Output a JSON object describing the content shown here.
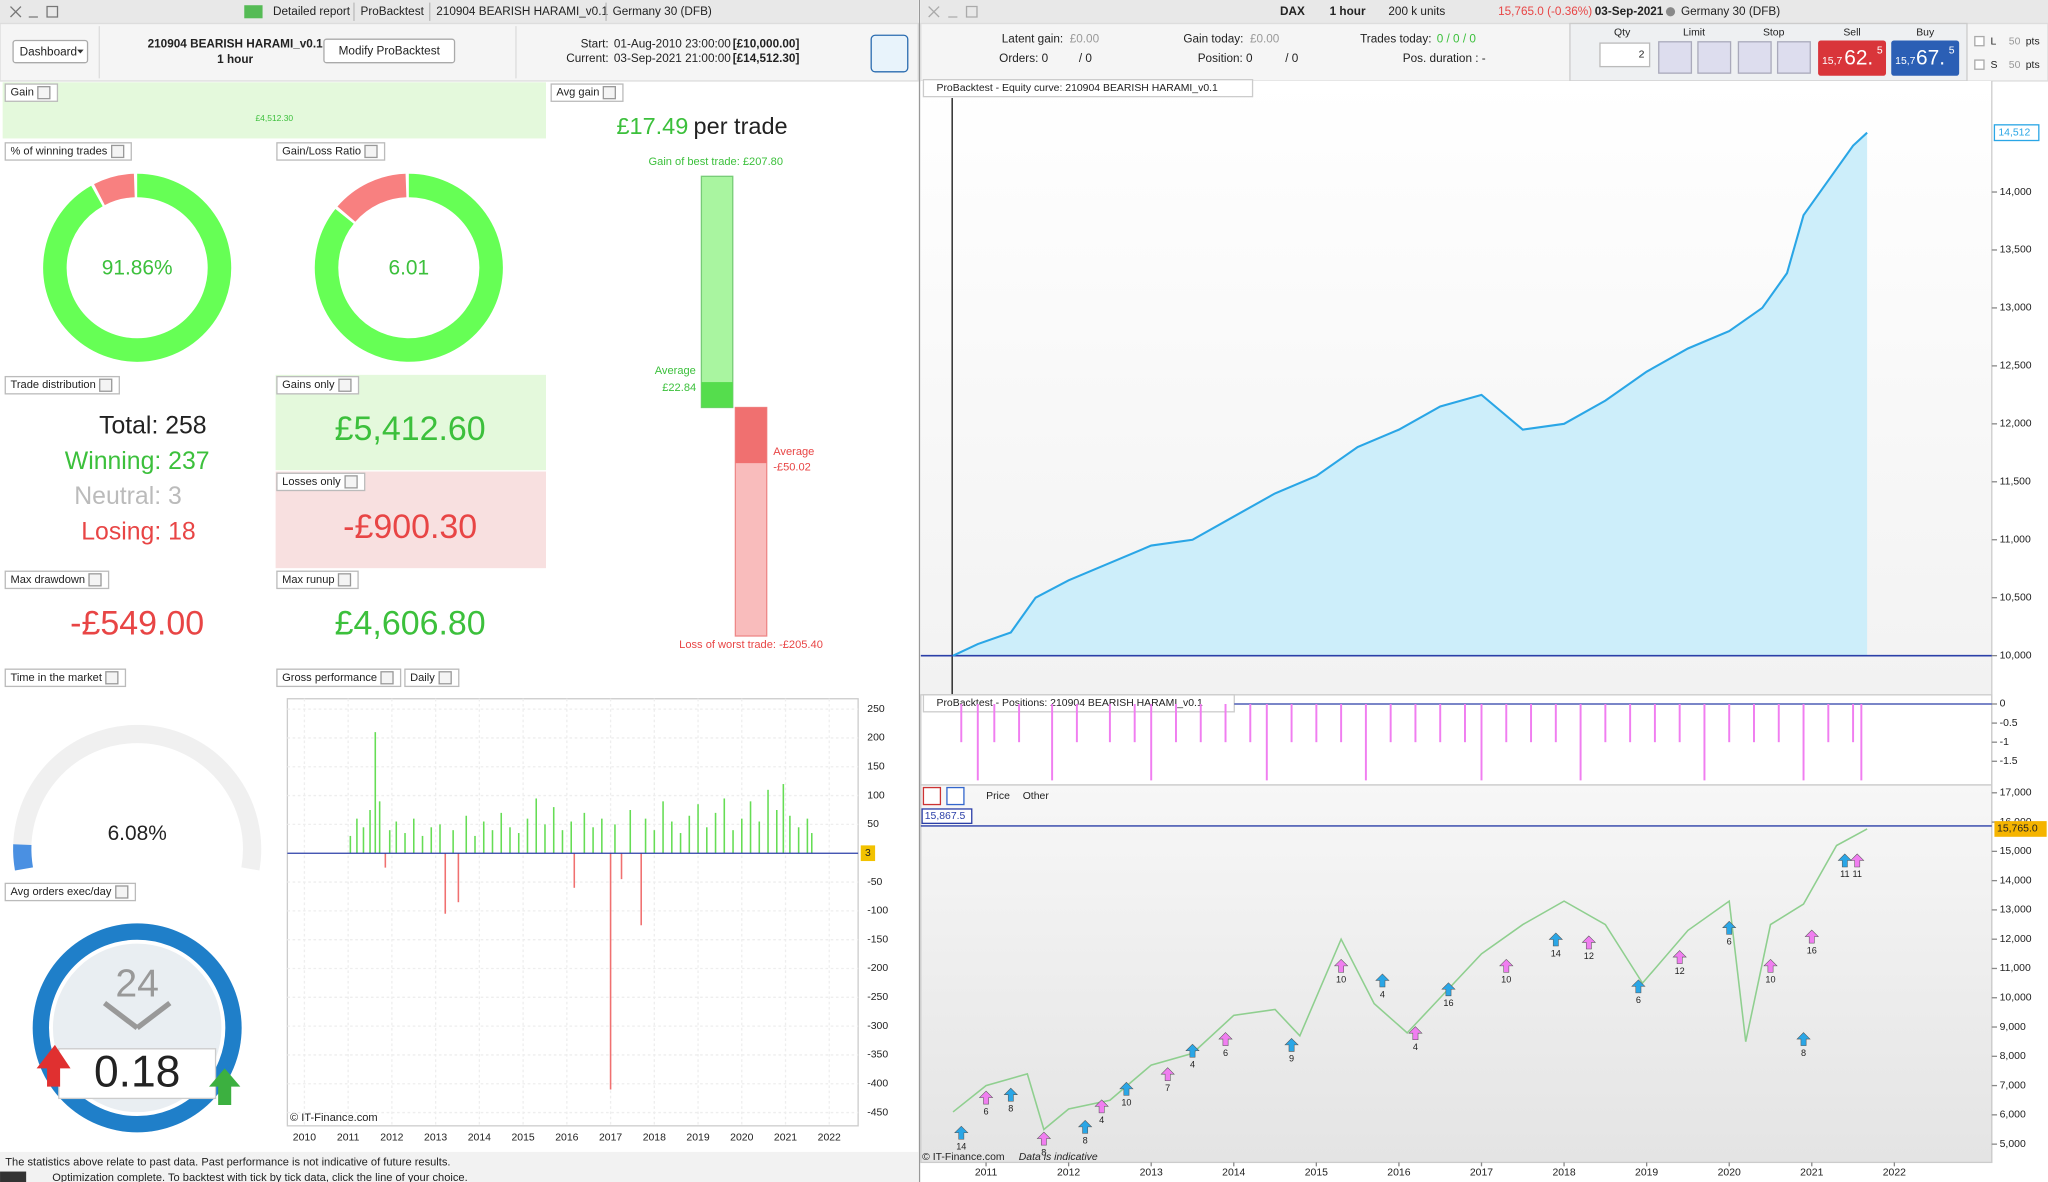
{
  "left": {
    "toolbar": {
      "tabs": [
        "Detailed report",
        "ProBacktest",
        "210904 BEARISH HARAMI_v0.1",
        "Germany 30 (DFB)"
      ]
    },
    "header": {
      "dashboard": "Dashboard",
      "strategy": "210904 BEARISH HARAMI_v0.1",
      "timeframe": "1 hour",
      "modify": "Modify ProBacktest",
      "start_label": "Start:",
      "start": "01-Aug-2010 23:00:00",
      "start_capital": "[£10,000.00]",
      "current_label": "Current:",
      "current": "03-Sep-2021 21:00:00",
      "current_capital": "[£14,512.30]"
    },
    "gain": {
      "label": "Gain",
      "text": "£4,512.30"
    },
    "winning": {
      "label": "% of winning trades",
      "text": "91.86%",
      "percent": 91.86
    },
    "ratio": {
      "label": "Gain/Loss Ratio",
      "value": 6.01
    },
    "distribution": {
      "label": "Trade distribution",
      "total": "Total: 258",
      "winning": "Winning: 237",
      "neutral": "Neutral: 3",
      "losing": "Losing: 18"
    },
    "gains_only": {
      "label": "Gains only",
      "text": "£5,412.60"
    },
    "losses_only": {
      "label": "Losses only",
      "text": "-£900.30"
    },
    "max_drawdown": {
      "label": "Max drawdown",
      "text": "-£549.00"
    },
    "max_runup": {
      "label": "Max runup",
      "text": "£4,606.80"
    },
    "avg_gain": {
      "label": "Avg gain",
      "amount": "£17.49",
      "unit": "per trade",
      "best_text": "Gain of best trade: £207.80",
      "best": 207.8,
      "avg_win_label": "Average",
      "avg_win_text": "£22.84",
      "avg_win": 22.84,
      "avg_loss_label": "Average",
      "avg_loss_text": "-£50.02",
      "avg_loss": -50.02,
      "worst_text": "Loss of worst trade: -£205.40",
      "worst": -205.4
    },
    "time_in_market": {
      "label": "Time in the market",
      "text": "6.08%",
      "percent": 6.08
    },
    "avg_orders": {
      "label": "Avg orders exec/day",
      "dial": "24",
      "text": "0.18"
    },
    "gross": {
      "label": "Gross performance",
      "period": "Daily",
      "copyright": "© IT-Finance.com",
      "zero_label": "3",
      "xlim": [
        2009.61,
        2022.66
      ],
      "xticks": [
        2010,
        2011,
        2012,
        2013,
        2014,
        2015,
        2016,
        2017,
        2018,
        2019,
        2020,
        2021,
        2022
      ],
      "ylim": [
        -473,
        268
      ],
      "yticks": [
        250,
        200,
        150,
        100,
        50,
        -50,
        -100,
        -150,
        -200,
        -250,
        -300,
        -350,
        -400,
        -450
      ],
      "up_color": "#66dd55",
      "down_color": "#f07070",
      "x": [
        2011.05,
        2011.2,
        2011.35,
        2011.5,
        2011.62,
        2011.72,
        2011.85,
        2011.95,
        2012.1,
        2012.3,
        2012.5,
        2012.7,
        2012.9,
        2013.1,
        2013.22,
        2013.4,
        2013.52,
        2013.7,
        2013.9,
        2014.1,
        2014.3,
        2014.5,
        2014.7,
        2014.9,
        2015.1,
        2015.3,
        2015.5,
        2015.7,
        2015.9,
        2016.1,
        2016.17,
        2016.4,
        2016.6,
        2016.8,
        2017.0,
        2017.1,
        2017.25,
        2017.45,
        2017.7,
        2017.8,
        2018.0,
        2018.2,
        2018.4,
        2018.6,
        2018.8,
        2019.0,
        2019.2,
        2019.4,
        2019.6,
        2019.8,
        2020.0,
        2020.2,
        2020.4,
        2020.6,
        2020.8,
        2020.95,
        2021.1,
        2021.3,
        2021.5,
        2021.6
      ],
      "values": [
        30,
        60,
        45,
        75,
        210,
        90,
        -25,
        40,
        55,
        35,
        60,
        30,
        45,
        50,
        -105,
        40,
        -85,
        65,
        30,
        55,
        40,
        70,
        45,
        35,
        60,
        95,
        50,
        80,
        40,
        55,
        -60,
        70,
        45,
        60,
        -410,
        50,
        -45,
        75,
        -125,
        60,
        40,
        90,
        55,
        35,
        65,
        85,
        45,
        70,
        95,
        40,
        60,
        90,
        55,
        110,
        75,
        120,
        65,
        45,
        60,
        35
      ]
    },
    "footer": "The statistics above relate to past data. Past performance is not indicative of future results.",
    "status": "Optimization complete. To backtest with tick by tick data, click the line of your choice."
  },
  "right": {
    "toolbar": {
      "symbol": "DAX",
      "timeframe": "1 hour",
      "units": "200 k units",
      "quote": "15,765.0 (-0.36%)",
      "date": "03-Sep-2021",
      "market": "Germany 30 (DFB)"
    },
    "stats": {
      "latent_label": "Latent gain:",
      "latent": "£0.00",
      "today_label": "Gain today:",
      "today": "£0.00",
      "trades_label": "Trades today:",
      "trades": "0 / 0 / 0",
      "orders": "Orders: 0",
      "orders_2": "/ 0",
      "position": "Position: 0",
      "position_2": "/ 0",
      "duration": "Pos. duration : -"
    },
    "order": {
      "qty_label": "Qty",
      "qty": "2",
      "limit": "Limit",
      "stop": "Stop",
      "sell": "Sell",
      "buy": "Buy",
      "sell_small": "15,7",
      "sell_big": "62.",
      "sell_sup": "5",
      "buy_small": "15,7",
      "buy_big": "67.",
      "buy_sup": "5",
      "long": "L",
      "short": "S",
      "long_pts": "50",
      "short_pts": "50",
      "pts_1": "pts",
      "pts_2": "pts"
    },
    "xlim": [
      2010.21,
      2023.18
    ],
    "xticks": [
      2011,
      2012,
      2013,
      2014,
      2015,
      2016,
      2017,
      2018,
      2019,
      2020,
      2021,
      2022
    ],
    "equity": {
      "title": "ProBacktest - Equity curve: 210904 BEARISH HARAMI_v0.1",
      "color": "#2aa6e6",
      "area_color": "#cdeefa",
      "ylim": [
        9662,
        14958
      ],
      "yticks": [
        {
          "value": 10000,
          "label": "10,000"
        },
        {
          "value": 10500,
          "label": "10,500"
        },
        {
          "value": 11000,
          "label": "11,000"
        },
        {
          "value": 11500,
          "label": "11,500"
        },
        {
          "value": 12000,
          "label": "12,000"
        },
        {
          "value": 12500,
          "label": "12,500"
        },
        {
          "value": 13000,
          "label": "13,000"
        },
        {
          "value": 13500,
          "label": "13,500"
        },
        {
          "value": 14000,
          "label": "14,000"
        }
      ],
      "current": {
        "value": 14512,
        "label": "14,512"
      },
      "x": [
        2010.6,
        2010.9,
        2011.3,
        2011.6,
        2012.0,
        2012.5,
        2013.0,
        2013.5,
        2014.0,
        2014.5,
        2015.0,
        2015.5,
        2016.0,
        2016.5,
        2017.0,
        2017.5,
        2018.0,
        2018.5,
        2019.0,
        2019.5,
        2020.0,
        2020.4,
        2020.7,
        2020.9,
        2021.2,
        2021.5,
        2021.67
      ],
      "values": [
        10000,
        10100,
        10200,
        10500,
        10650,
        10800,
        10950,
        11000,
        11200,
        11400,
        11550,
        11800,
        11950,
        12150,
        12250,
        11950,
        12000,
        12200,
        12450,
        12650,
        12800,
        13000,
        13300,
        13800,
        14100,
        14400,
        14512
      ]
    },
    "positions": {
      "title": "ProBacktest - Positions: 210904 BEARISH HARAMI_v0.1",
      "color": "#f07ef0",
      "ylim": [
        -2.12,
        0.24
      ],
      "yticks": [
        0,
        -0.5,
        -1,
        -1.5
      ],
      "x": [
        2010.7,
        2010.9,
        2011.1,
        2011.4,
        2011.8,
        2012.1,
        2012.5,
        2012.8,
        2013.0,
        2013.3,
        2013.6,
        2013.9,
        2014.2,
        2014.4,
        2014.7,
        2015.0,
        2015.3,
        2015.6,
        2015.9,
        2016.2,
        2016.5,
        2016.8,
        2017.0,
        2017.3,
        2017.6,
        2017.9,
        2018.2,
        2018.5,
        2018.8,
        2019.1,
        2019.4,
        2019.7,
        2020.0,
        2020.3,
        2020.6,
        2020.9,
        2021.2,
        2021.5,
        2021.6
      ],
      "values": [
        -1,
        -2,
        -1,
        -1,
        -2,
        -1,
        -1,
        -1,
        -2,
        -1,
        -1,
        -1,
        -1,
        -2,
        -1,
        -1,
        -1,
        -2,
        -1,
        -1,
        -1,
        -1,
        -2,
        -1,
        -1,
        -1,
        -2,
        -1,
        -1,
        -1,
        -1,
        -2,
        -1,
        -1,
        -1,
        -2,
        -1,
        -1,
        -2
      ]
    },
    "price": {
      "tabs": [
        "Price",
        "Other"
      ],
      "color": "#8fcf8f",
      "ylim": [
        4376,
        17268
      ],
      "yticks": [
        {
          "value": 5000,
          "label": "5,000"
        },
        {
          "value": 6000,
          "label": "6,000"
        },
        {
          "value": 7000,
          "label": "7,000"
        },
        {
          "value": 8000,
          "label": "8,000"
        },
        {
          "value": 9000,
          "label": "9,000"
        },
        {
          "value": 10000,
          "label": "10,000"
        },
        {
          "value": 11000,
          "label": "11,000"
        },
        {
          "value": 12000,
          "label": "12,000"
        },
        {
          "value": 13000,
          "label": "13,000"
        },
        {
          "value": 14000,
          "label": "14,000"
        },
        {
          "value": 15000,
          "label": "15,000"
        },
        {
          "value": 16000,
          "label": "16,000"
        },
        {
          "value": 17000,
          "label": "17,000"
        }
      ],
      "level": {
        "value": 15867.5,
        "label": "15,867.5"
      },
      "last": {
        "value": 15765,
        "label": "15,765.0"
      },
      "copyright": "© IT-Finance.com",
      "note": "Data is indicative",
      "x": [
        2010.6,
        2011.0,
        2011.5,
        2011.7,
        2012.0,
        2012.5,
        2013.0,
        2013.5,
        2014.0,
        2014.5,
        2014.8,
        2015.3,
        2015.7,
        2016.1,
        2016.5,
        2017.0,
        2017.5,
        2018.0,
        2018.5,
        2018.95,
        2019.5,
        2020.0,
        2020.2,
        2020.5,
        2020.9,
        2021.3,
        2021.67
      ],
      "values": [
        6100,
        7000,
        7400,
        5500,
        6200,
        6500,
        7700,
        8100,
        9400,
        9600,
        8700,
        12000,
        9800,
        8800,
        10000,
        11500,
        12500,
        13300,
        12500,
        10500,
        12300,
        13300,
        8500,
        12500,
        13200,
        15200,
        15765
      ],
      "signals": [
        {
          "x": 2010.7,
          "y": 5300,
          "label": "14",
          "color": "#2aa6e6"
        },
        {
          "x": 2011.0,
          "y": 6500,
          "label": "6",
          "color": "#f07ef0"
        },
        {
          "x": 2011.3,
          "y": 6600,
          "label": "8",
          "color": "#2aa6e6"
        },
        {
          "x": 2011.7,
          "y": 5100,
          "label": "8",
          "color": "#f07ef0"
        },
        {
          "x": 2012.2,
          "y": 5500,
          "label": "8",
          "color": "#2aa6e6"
        },
        {
          "x": 2012.4,
          "y": 6200,
          "label": "4",
          "color": "#f07ef0"
        },
        {
          "x": 2012.7,
          "y": 6800,
          "label": "10",
          "color": "#2aa6e6"
        },
        {
          "x": 2013.2,
          "y": 7300,
          "label": "7",
          "color": "#f07ef0"
        },
        {
          "x": 2013.5,
          "y": 8100,
          "label": "4",
          "color": "#2aa6e6"
        },
        {
          "x": 2013.9,
          "y": 8500,
          "label": "6",
          "color": "#f07ef0"
        },
        {
          "x": 2014.7,
          "y": 8300,
          "label": "9",
          "color": "#2aa6e6"
        },
        {
          "x": 2015.3,
          "y": 11000,
          "label": "10",
          "color": "#f07ef0"
        },
        {
          "x": 2015.8,
          "y": 10500,
          "label": "4",
          "color": "#2aa6e6"
        },
        {
          "x": 2016.2,
          "y": 8700,
          "label": "4",
          "color": "#f07ef0"
        },
        {
          "x": 2016.6,
          "y": 10200,
          "label": "16",
          "color": "#2aa6e6"
        },
        {
          "x": 2017.3,
          "y": 11000,
          "label": "10",
          "color": "#f07ef0"
        },
        {
          "x": 2017.9,
          "y": 11900,
          "label": "14",
          "color": "#2aa6e6"
        },
        {
          "x": 2018.3,
          "y": 11800,
          "label": "12",
          "color": "#f07ef0"
        },
        {
          "x": 2018.9,
          "y": 10300,
          "label": "6",
          "color": "#2aa6e6"
        },
        {
          "x": 2019.4,
          "y": 11300,
          "label": "12",
          "color": "#f07ef0"
        },
        {
          "x": 2020.0,
          "y": 12300,
          "label": "6",
          "color": "#2aa6e6"
        },
        {
          "x": 2020.5,
          "y": 11000,
          "label": "10",
          "color": "#f07ef0"
        },
        {
          "x": 2020.9,
          "y": 8500,
          "label": "8",
          "color": "#2aa6e6"
        },
        {
          "x": 2021.0,
          "y": 12000,
          "label": "16",
          "color": "#f07ef0"
        },
        {
          "x": 2021.4,
          "y": 14600,
          "label": "11",
          "color": "#2aa6e6"
        },
        {
          "x": 2021.55,
          "y": 14600,
          "label": "11",
          "color": "#f07ef0"
        }
      ]
    }
  }
}
